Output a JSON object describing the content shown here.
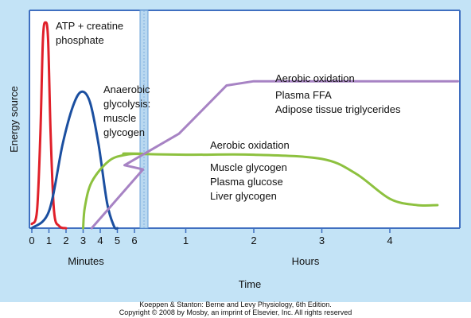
{
  "chart_data": {
    "type": "line",
    "xlabel": "Time",
    "ylabel": "Energy source",
    "x_axis": {
      "minutes_segment": {
        "label": "Minutes",
        "ticks": [
          "0",
          "1",
          "2",
          "3",
          "4",
          "5",
          "6"
        ],
        "range": [
          0,
          6.5
        ]
      },
      "hours_segment": {
        "label": "Hours",
        "ticks": [
          "1",
          "2",
          "3",
          "4"
        ],
        "range": [
          0.1,
          5
        ]
      }
    },
    "y_range": [
      0,
      100
    ],
    "series": [
      {
        "name": "ATP + creatine phosphate",
        "color": "#e0202a",
        "segment": "minutes",
        "points": [
          [
            0,
            2
          ],
          [
            0.3,
            8
          ],
          [
            0.5,
            45
          ],
          [
            0.65,
            90
          ],
          [
            0.8,
            98
          ],
          [
            0.95,
            90
          ],
          [
            1.1,
            45
          ],
          [
            1.3,
            8
          ],
          [
            1.6,
            1
          ],
          [
            2.0,
            0
          ]
        ]
      },
      {
        "name": "Anaerobic glycolysis: muscle glycogen",
        "color": "#1b4fa0",
        "segment": "minutes",
        "points": [
          [
            0,
            0
          ],
          [
            1.0,
            8
          ],
          [
            1.8,
            40
          ],
          [
            2.4,
            58
          ],
          [
            2.9,
            65
          ],
          [
            3.4,
            60
          ],
          [
            3.9,
            40
          ],
          [
            4.4,
            12
          ],
          [
            4.8,
            1
          ],
          [
            5.0,
            0
          ]
        ]
      },
      {
        "name": "Aerobic oxidation: muscle glycogen, plasma glucose, liver glycogen",
        "color": "#8dc13f",
        "segment": "mixed",
        "points_minutes": [
          [
            3.0,
            0
          ],
          [
            3.1,
            10
          ],
          [
            3.5,
            22
          ],
          [
            4.5,
            32
          ],
          [
            5.5,
            35
          ],
          [
            6.5,
            35.5
          ]
        ],
        "points_hours": [
          [
            0.1,
            35.5
          ],
          [
            1.0,
            35
          ],
          [
            2.0,
            35
          ],
          [
            3.0,
            33
          ],
          [
            3.5,
            26
          ],
          [
            4.0,
            14
          ],
          [
            4.4,
            11
          ],
          [
            4.7,
            11
          ]
        ]
      },
      {
        "name": "Aerobic oxidation: plasma FFA, adipose tissue triglycerides",
        "color": "#a783c4",
        "segment": "mixed",
        "points_minutes": [
          [
            3.5,
            0
          ],
          [
            6.5,
            28
          ]
        ],
        "points_hours": [
          [
            0.1,
            30
          ],
          [
            0.9,
            45
          ],
          [
            1.6,
            68
          ],
          [
            2.0,
            70
          ],
          [
            3.0,
            70
          ],
          [
            5.0,
            70
          ]
        ]
      }
    ],
    "annotations": [
      {
        "lines": [
          "ATP + creatine",
          "phosphate"
        ],
        "for": "ATP + creatine phosphate"
      },
      {
        "lines": [
          "Anaerobic",
          "glycolysis:",
          "muscle",
          "glycogen"
        ],
        "for": "Anaerobic glycolysis"
      },
      {
        "lines": [
          "Aerobic oxidation"
        ],
        "for": "aerobic upper"
      },
      {
        "lines": [
          "Plasma FFA",
          "Adipose tissue triglycerides"
        ],
        "for": "aerobic upper"
      },
      {
        "lines": [
          "Aerobic oxidation"
        ],
        "for": "aerobic lower"
      },
      {
        "lines": [
          "Muscle glycogen",
          "Plasma glucose",
          "Liver glycogen"
        ],
        "for": "aerobic lower"
      }
    ]
  },
  "credit": {
    "line1": "Koeppen & Stanton: Berne and Levy Physiology, 6th Edition.",
    "line2": "Copyright © 2008 by Mosby, an imprint of Elsevier, Inc. All rights reserved"
  }
}
